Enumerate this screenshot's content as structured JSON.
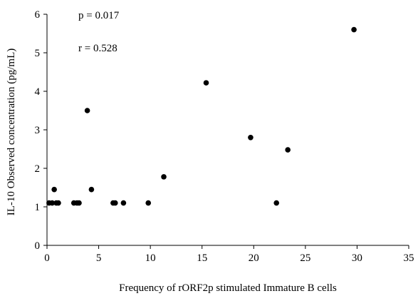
{
  "chart_data": {
    "type": "scatter",
    "xlabel": "Frequency of rORF2p stimulated Immature B cells",
    "ylabel": "IL-10 Observed concentration (pg/mL)",
    "xlim": [
      0,
      35
    ],
    "ylim": [
      0,
      6
    ],
    "x_ticks": [
      0,
      5,
      10,
      15,
      20,
      25,
      30,
      35
    ],
    "y_ticks": [
      0,
      1,
      2,
      3,
      4,
      5,
      6
    ],
    "grid": false,
    "legend": "none",
    "annotations": [
      "p = 0.017",
      "r = 0.528"
    ],
    "marker_color": "#000000",
    "points": [
      {
        "x": 0.2,
        "y": 1.1
      },
      {
        "x": 0.5,
        "y": 1.1
      },
      {
        "x": 0.7,
        "y": 1.45
      },
      {
        "x": 0.9,
        "y": 1.1
      },
      {
        "x": 1.1,
        "y": 1.1
      },
      {
        "x": 2.6,
        "y": 1.1
      },
      {
        "x": 2.9,
        "y": 1.1
      },
      {
        "x": 3.1,
        "y": 1.1
      },
      {
        "x": 3.9,
        "y": 3.5
      },
      {
        "x": 4.3,
        "y": 1.45
      },
      {
        "x": 6.4,
        "y": 1.1
      },
      {
        "x": 6.6,
        "y": 1.1
      },
      {
        "x": 7.4,
        "y": 1.1
      },
      {
        "x": 9.8,
        "y": 1.1
      },
      {
        "x": 11.3,
        "y": 1.78
      },
      {
        "x": 15.4,
        "y": 4.22
      },
      {
        "x": 19.7,
        "y": 2.8
      },
      {
        "x": 22.2,
        "y": 1.1
      },
      {
        "x": 23.3,
        "y": 2.48
      },
      {
        "x": 29.7,
        "y": 5.6
      }
    ]
  }
}
